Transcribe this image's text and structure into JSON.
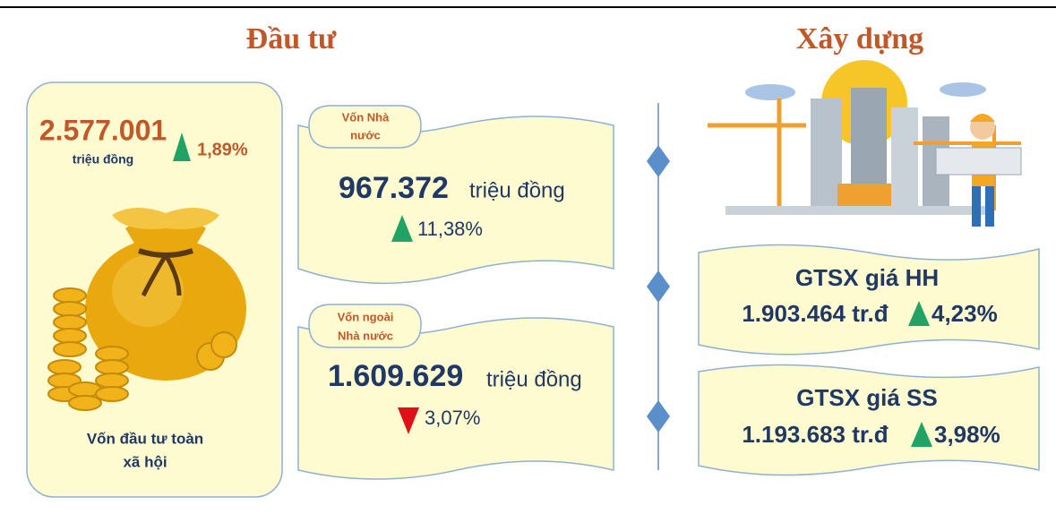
{
  "headings": {
    "invest": "Đầu tư",
    "construction": "Xây dựng"
  },
  "invest": {
    "total": {
      "value": "2.577.001",
      "unit": "triệu đồng",
      "change": "1,89%",
      "label": [
        "Vốn đầu tư toàn",
        "xã hội"
      ]
    },
    "state": {
      "label": [
        "Vốn Nhà",
        "nước"
      ],
      "value": "967.372",
      "unit": "triệu đồng",
      "change": "11,38%"
    },
    "nonstate": {
      "label": [
        "Vốn ngoài",
        "Nhà nước"
      ],
      "value": "1.609.629",
      "unit": "triệu đồng",
      "change": "3,07%"
    }
  },
  "construction": {
    "items": [
      {
        "label": "GTSX giá HH",
        "value": "1.903.464 tr.đ",
        "change": "4,23%"
      },
      {
        "label": "GTSX giá SS",
        "value": "1.193.683 tr.đ",
        "change": "3,98%"
      }
    ]
  }
}
